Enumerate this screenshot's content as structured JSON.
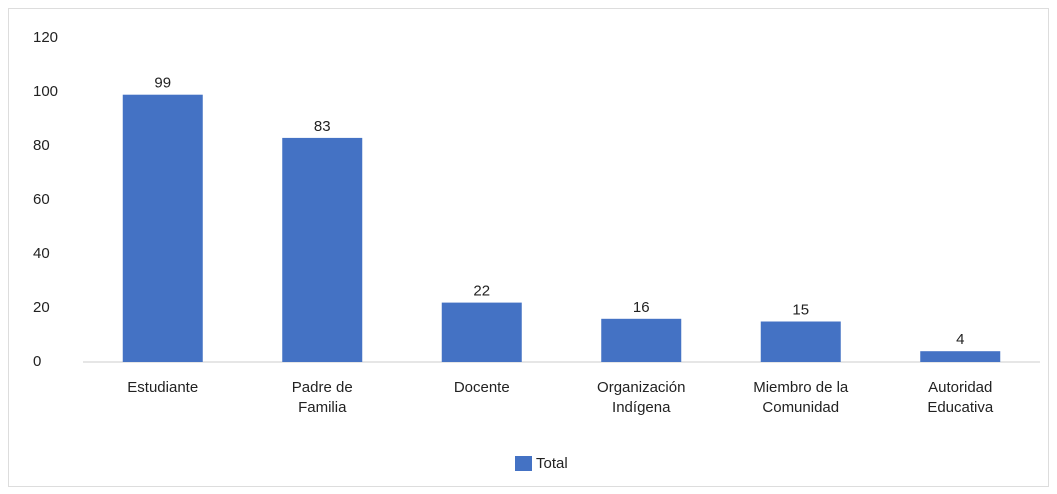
{
  "chart_data": {
    "type": "bar",
    "categories": [
      "Estudiante",
      "Padre de\nFamilia",
      "Docente",
      "Organización\nIndígena",
      "Miembro de la\nComunidad",
      "Autoridad\nEducativa"
    ],
    "series": [
      {
        "name": "Total",
        "color": "#4472c4",
        "values": [
          99,
          83,
          22,
          16,
          15,
          4
        ]
      }
    ],
    "ylim": [
      0,
      120
    ],
    "yticks": [
      0,
      20,
      40,
      60,
      80,
      100,
      120
    ],
    "grid": false,
    "legend": "bottom"
  }
}
